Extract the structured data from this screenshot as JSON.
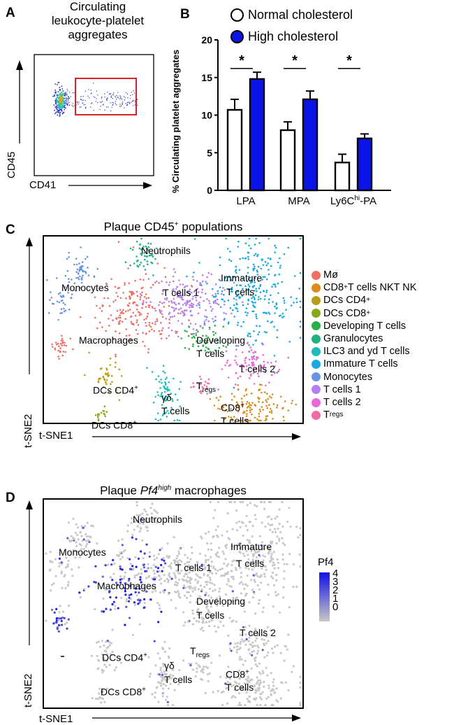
{
  "panels": {
    "A": {
      "letter": "A",
      "title_lines": [
        "Circulating",
        "leukocyte-platelet",
        "aggregates"
      ],
      "xlabel": "CD41",
      "ylabel": "CD45",
      "gate_color": "#d8202a"
    },
    "B": {
      "letter": "B",
      "legend": [
        {
          "label": "Normal cholesterol",
          "color": "#ffffff"
        },
        {
          "label": "High cholesterol",
          "color": "#0a14e6"
        }
      ],
      "significance": "*"
    },
    "C": {
      "letter": "C",
      "title": "Plaque CD45",
      "title_sup": "+",
      "title_rest": " populations",
      "xlabel": "t-SNE1",
      "ylabel": "t-SNE2",
      "cluster_labels": {
        "neutrophils": "Neutrophils",
        "monocytes": "Monocytes",
        "tcells1": "T cells 1",
        "immature1": "Immature",
        "immature2": "T cells",
        "macrophages": "Macrophages",
        "developing1": "Developing",
        "developing2": "T cells",
        "tcells2": "T cells 2",
        "dcscd4": "DCs CD4",
        "dcscd8": "DCs CD8",
        "plus": "+",
        "gd1": "γδ",
        "gd2": "T cells",
        "treg_t": "T",
        "treg_sub": "regs",
        "cd8": "CD8",
        "cd8_2": "T cells"
      },
      "legend": [
        {
          "label": "Mø",
          "sup": "",
          "sub": "",
          "color": "#ec7066"
        },
        {
          "label": "CD8",
          "sup": "+",
          "rest": " T cells NKT NK",
          "sub": "",
          "color": "#d98c1b"
        },
        {
          "label": "DCs CD4",
          "sup": "+",
          "sub": "",
          "color": "#b69e19"
        },
        {
          "label": "DCs CD8",
          "sup": "+",
          "sub": "",
          "color": "#88a91c"
        },
        {
          "label": "Developing T cells",
          "sup": "",
          "sub": "",
          "color": "#27b144"
        },
        {
          "label": "Granulocytes",
          "sup": "",
          "sub": "",
          "color": "#20b27e"
        },
        {
          "label": "ILC3 and yd T cells",
          "sup": "",
          "sub": "",
          "color": "#1fbcbc"
        },
        {
          "label": "Immature T cells",
          "sup": "",
          "sub": "",
          "color": "#1aa8e0"
        },
        {
          "label": "Monocytes",
          "sup": "",
          "sub": "",
          "color": "#6b93e4"
        },
        {
          "label": "T cells 1",
          "sup": "",
          "sub": "",
          "color": "#b57ff0"
        },
        {
          "label": "T cells 2",
          "sup": "",
          "sub": "",
          "color": "#e768d6"
        },
        {
          "label": "T",
          "sup": "",
          "sub": "regs",
          "color": "#f06ba3"
        }
      ]
    },
    "D": {
      "letter": "D",
      "title_pre": "Plaque ",
      "title_italic": "Pf4",
      "title_sup": "high",
      "title_rest": " macrophages",
      "xlabel": "t-SNE1",
      "ylabel": "t-SNE2",
      "colorbar_title": "Pf4",
      "colorbar_ticks": [
        "4",
        "3",
        "2",
        "1",
        "0"
      ],
      "colorbar_low": "#c8c8c8",
      "colorbar_high": "#1010e8"
    }
  },
  "chart_data": [
    {
      "type": "scatter",
      "title": "Circulating leukocyte-platelet aggregates",
      "xlabel": "CD41",
      "ylabel": "CD45",
      "gate": "rectangle (CD41-high region)"
    },
    {
      "type": "bar",
      "title": "",
      "xlabel": "",
      "ylabel": "% Circulating platelet aggregates",
      "ylim": [
        0,
        20
      ],
      "yticks": [
        "0",
        "5",
        "10",
        "15",
        "20"
      ],
      "categories": [
        "LPA",
        "MPA",
        "Ly6C^hi-PA"
      ],
      "category_labels": [
        {
          "main": "LPA",
          "sup": "",
          "rest": ""
        },
        {
          "main": "MPA",
          "sup": "",
          "rest": ""
        },
        {
          "main": "Ly6C",
          "sup": "hi",
          "rest": "-PA"
        }
      ],
      "series": [
        {
          "name": "Normal cholesterol",
          "values": [
            10.7,
            8.0,
            3.7
          ],
          "errors": [
            1.4,
            1.1,
            1.1
          ]
        },
        {
          "name": "High cholesterol",
          "values": [
            14.8,
            12.1,
            6.9
          ],
          "errors": [
            0.9,
            1.1,
            0.6
          ]
        }
      ],
      "annotations": [
        "*",
        "*",
        "*"
      ],
      "legend": "top"
    },
    {
      "type": "scatter",
      "title": "Plaque CD45+ populations",
      "xlabel": "t-SNE1",
      "ylabel": "t-SNE2",
      "legend": "right"
    },
    {
      "type": "scatter",
      "title": "Plaque Pf4high macrophages",
      "xlabel": "t-SNE1",
      "ylabel": "t-SNE2",
      "colorbar": {
        "label": "Pf4",
        "range": [
          0,
          4
        ]
      },
      "legend": "right"
    }
  ]
}
